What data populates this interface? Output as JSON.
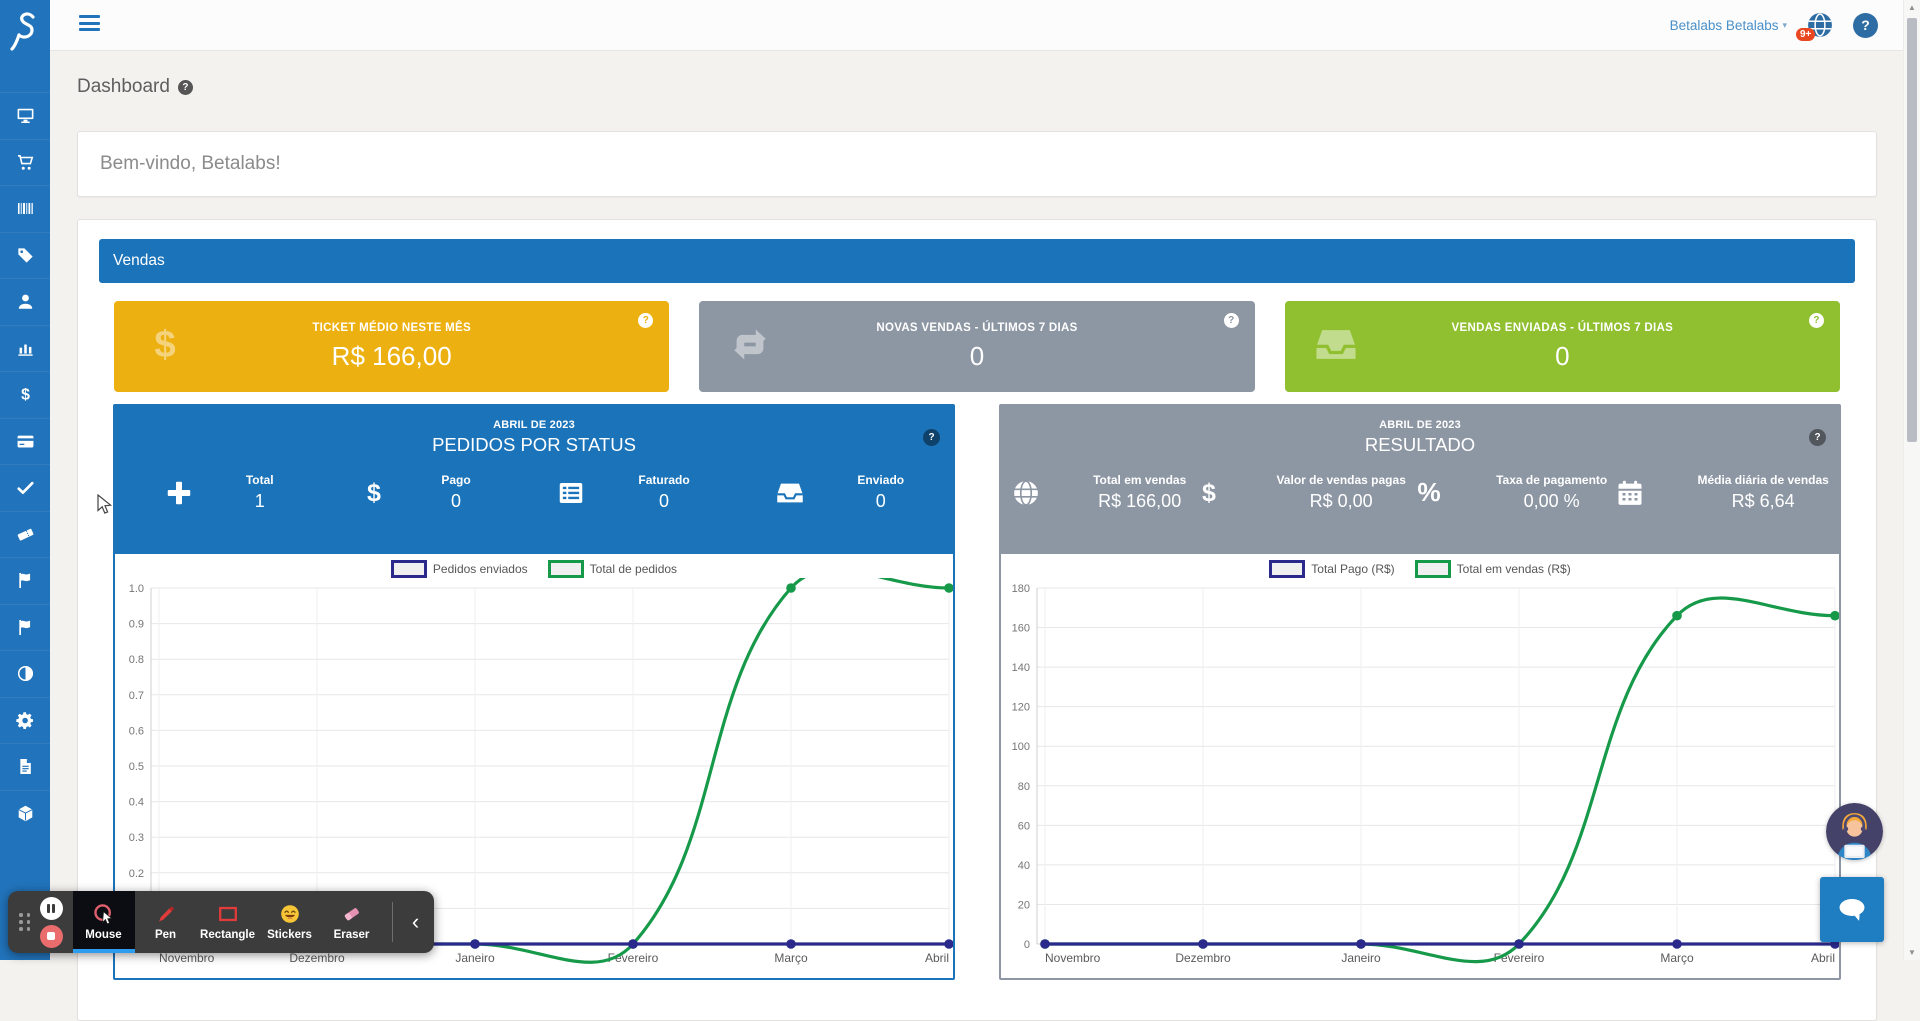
{
  "ui": {
    "help_glyph": "?"
  },
  "topbar": {
    "user_menu_label": "Betalabs Betalabs",
    "notification_badge": "9+"
  },
  "page": {
    "title": "Dashboard",
    "welcome_message": "Bem-vindo, Betalabs!"
  },
  "sidebar": {
    "items": [
      {
        "icon": "desktop-icon"
      },
      {
        "icon": "cart-icon"
      },
      {
        "icon": "barcode-icon"
      },
      {
        "icon": "tag-icon"
      },
      {
        "icon": "user-icon"
      },
      {
        "icon": "bar-chart-icon"
      },
      {
        "icon": "dollar-icon"
      },
      {
        "icon": "credit-card-icon"
      },
      {
        "icon": "check-icon"
      },
      {
        "icon": "ticket-icon"
      },
      {
        "icon": "flag-icon"
      },
      {
        "icon": "flag-icon"
      },
      {
        "icon": "contrast-icon"
      },
      {
        "icon": "gear-icon"
      },
      {
        "icon": "document-icon"
      },
      {
        "icon": "cube-icon"
      }
    ]
  },
  "sales_section": {
    "title": "Vendas",
    "stat_cards": [
      {
        "title": "TICKET MÉDIO NESTE MÊS",
        "value": "R$ 166,00",
        "color": "#edb011",
        "icon": "dollar-icon"
      },
      {
        "title": "NOVAS VENDAS - ÚLTIMOS 7 DIAS",
        "value": "0",
        "color": "#8d96a3",
        "icon": "refresh-icon"
      },
      {
        "title": "VENDAS ENVIADAS - ÚLTIMOS 7 DIAS",
        "value": "0",
        "color": "#90bf2f",
        "icon": "inbox-icon"
      }
    ]
  },
  "panels": [
    {
      "theme_color": "#1b73b9",
      "subtitle": "ABRIL DE 2023",
      "title": "PEDIDOS POR STATUS",
      "stats": [
        {
          "icon": "plus-icon",
          "label": "Total",
          "value": "1"
        },
        {
          "icon": "dollar-icon",
          "label": "Pago",
          "value": "0"
        },
        {
          "icon": "list-icon",
          "label": "Faturado",
          "value": "0"
        },
        {
          "icon": "inbox-icon",
          "label": "Enviado",
          "value": "0"
        }
      ]
    },
    {
      "theme_color": "#8d96a3",
      "subtitle": "ABRIL DE 2023",
      "title": "RESULTADO",
      "stats": [
        {
          "icon": "globe-icon",
          "label": "Total em vendas",
          "value": "R$ 166,00"
        },
        {
          "icon": "dollar-icon",
          "label": "Valor de vendas pagas",
          "value": "R$ 0,00"
        },
        {
          "icon": "percent-icon",
          "label": "Taxa de pagamento",
          "value": "0,00 %"
        },
        {
          "icon": "calendar-icon",
          "label": "Média diária de vendas",
          "value": "R$ 6,64"
        }
      ]
    }
  ],
  "chart_data": [
    {
      "type": "line",
      "title": "PEDIDOS POR STATUS",
      "categories": [
        "Novembro",
        "Dezembro",
        "Janeiro",
        "Fevereiro",
        "Março",
        "Abril"
      ],
      "series": [
        {
          "name": "Pedidos enviados",
          "color": "#2b2a8c",
          "values": [
            0,
            0,
            0,
            0,
            0,
            0
          ]
        },
        {
          "name": "Total de pedidos",
          "color": "#169a4a",
          "values": [
            0,
            0,
            0,
            0,
            1,
            1
          ]
        }
      ],
      "ylim": [
        0,
        1
      ],
      "ytick_step": 0.1,
      "y_decimals": 1,
      "grid": true,
      "legend_position": "top"
    },
    {
      "type": "line",
      "title": "RESULTADO",
      "categories": [
        "Novembro",
        "Dezembro",
        "Janeiro",
        "Fevereiro",
        "Março",
        "Abril"
      ],
      "series": [
        {
          "name": "Total Pago (R$)",
          "color": "#2b2a8c",
          "values": [
            0,
            0,
            0,
            0,
            0,
            0
          ]
        },
        {
          "name": "Total em vendas (R$)",
          "color": "#169a4a",
          "values": [
            0,
            0,
            0,
            0,
            166,
            166
          ]
        }
      ],
      "ylim": [
        0,
        180
      ],
      "ytick_step": 20,
      "y_decimals": 0,
      "grid": true,
      "legend_position": "top"
    }
  ],
  "recorder_toolbar": {
    "tools": [
      {
        "label": "Mouse",
        "icon": "mouse-tool-icon",
        "selected": true
      },
      {
        "label": "Pen",
        "icon": "pen-icon",
        "selected": false
      },
      {
        "label": "Rectangle",
        "icon": "rectangle-icon",
        "selected": false
      },
      {
        "label": "Stickers",
        "icon": "stickers-icon",
        "selected": false
      },
      {
        "label": "Eraser",
        "icon": "eraser-icon",
        "selected": false
      }
    ]
  }
}
